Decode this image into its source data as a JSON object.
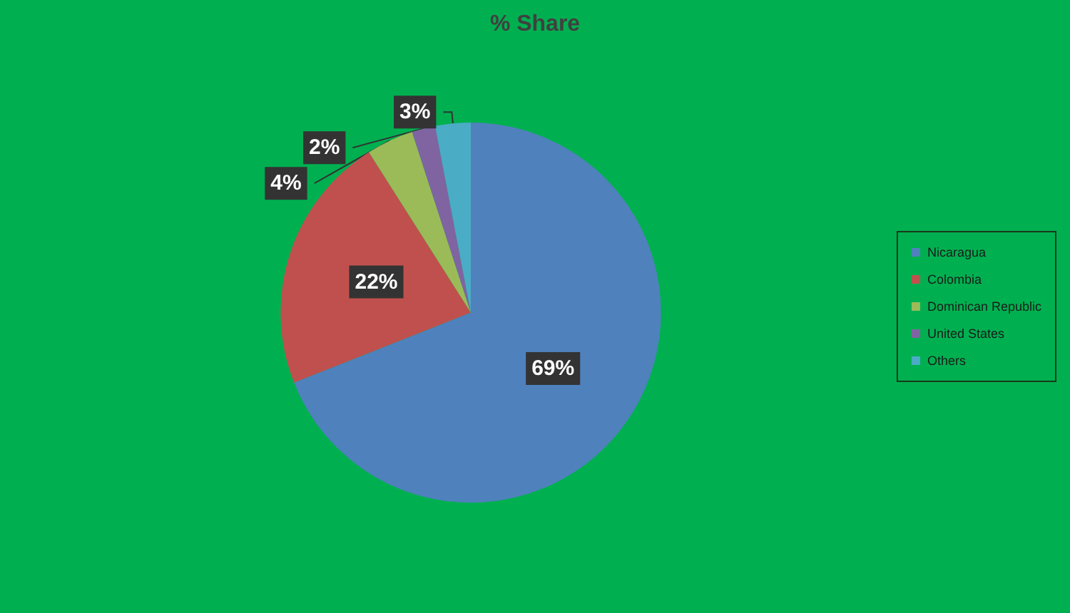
{
  "chart_data": {
    "type": "pie",
    "title": "% Share",
    "categories": [
      "Nicaragua",
      "Colombia",
      "Dominican Republic",
      "United States",
      "Others"
    ],
    "values": [
      69,
      22,
      4,
      2,
      3
    ],
    "colors": [
      "#4f81bd",
      "#c0504d",
      "#9bbb59",
      "#8064a2",
      "#4bacc6"
    ],
    "value_labels": [
      "69%",
      "22%",
      "4%",
      "2%",
      "3%"
    ],
    "legend": "right"
  }
}
